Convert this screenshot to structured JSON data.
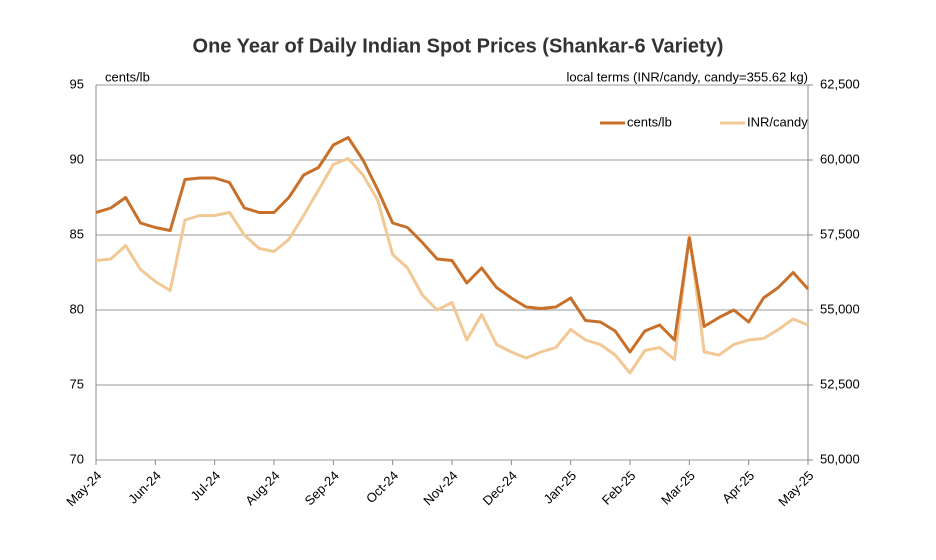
{
  "chart_data": {
    "type": "line",
    "title": "One Year of Daily Indian Spot Prices (Shankar-6 Variety)",
    "y_label": "cents/lb",
    "y2_label": "local terms (INR/candy, candy=355.62 kg)",
    "categories": [
      "May-24",
      null,
      null,
      null,
      "Jun-24",
      null,
      null,
      null,
      "Jul-24",
      null,
      null,
      null,
      "Aug-24",
      null,
      null,
      null,
      "Sep-24",
      null,
      null,
      null,
      "Oct-24",
      null,
      null,
      null,
      "Nov-24",
      null,
      null,
      null,
      "Dec-24",
      null,
      null,
      null,
      "Jan-25",
      null,
      null,
      null,
      "Feb-25",
      null,
      null,
      null,
      "Mar-25",
      null,
      null,
      null,
      "Apr-25",
      null,
      null,
      null,
      "May-25"
    ],
    "series": [
      {
        "name": "cents/lb",
        "color": "#c8702a",
        "axis": "y",
        "values": [
          86.5,
          86.8,
          87.5,
          85.8,
          85.5,
          85.3,
          88.7,
          88.8,
          88.8,
          88.5,
          86.8,
          86.5,
          86.5,
          87.5,
          89,
          89.5,
          91,
          91.5,
          90,
          88,
          85.8,
          85.5,
          84.5,
          83.4,
          83.3,
          81.8,
          82.8,
          81.5,
          80.8,
          80.2,
          80.1,
          80.2,
          80.8,
          79.3,
          79.2,
          78.6,
          77.2,
          78.6,
          79,
          78,
          84.8,
          78.9,
          79.5,
          80,
          79.2,
          80.8,
          81.5,
          82.5,
          81.4
        ]
      },
      {
        "name": "INR/candy",
        "color": "#f2c895",
        "axis": "y2",
        "values": [
          56650,
          56700,
          57150,
          56350,
          55950,
          55650,
          58000,
          58150,
          58150,
          58250,
          57500,
          57050,
          56950,
          57350,
          58150,
          59000,
          59850,
          60050,
          59500,
          58650,
          56850,
          56400,
          55500,
          55000,
          55250,
          54000,
          54850,
          53850,
          53600,
          53400,
          53600,
          53750,
          54350,
          54000,
          53850,
          53500,
          52900,
          53650,
          53750,
          53350,
          57500,
          53600,
          53500,
          53850,
          54000,
          54050,
          54350,
          54700,
          54500
        ]
      }
    ],
    "ylim": [
      70,
      95
    ],
    "yticks": [
      70,
      75,
      80,
      85,
      90,
      95
    ],
    "y2lim": [
      50000,
      62500
    ],
    "y2ticks": [
      {
        "value": 50000,
        "label": "50,000"
      },
      {
        "value": 52500,
        "label": "52,500"
      },
      {
        "value": 55000,
        "label": "55,000"
      },
      {
        "value": 57500,
        "label": "57,500"
      },
      {
        "value": 60000,
        "label": "60,000"
      },
      {
        "value": 62500,
        "label": "62,500"
      }
    ],
    "grid": true,
    "legend": "upper right"
  }
}
